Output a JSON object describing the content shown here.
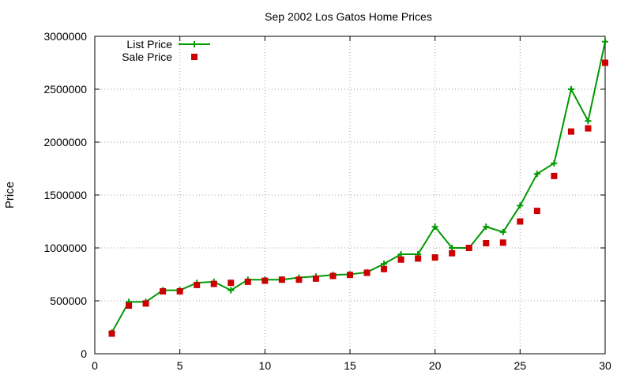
{
  "chart_data": {
    "type": "line",
    "title": "Sep 2002 Los Gatos Home Prices",
    "xlabel": "",
    "ylabel": "Price",
    "xlim": [
      0,
      30
    ],
    "ylim": [
      0,
      3000000
    ],
    "grid": true,
    "legend_position": "top-left",
    "xticks": [
      "0",
      "5",
      "10",
      "15",
      "20",
      "25",
      "30"
    ],
    "yticks": [
      "0",
      "500000",
      "1000000",
      "1500000",
      "2000000",
      "2500000",
      "3000000"
    ],
    "series": [
      {
        "name": "List Price",
        "style": "linespoints",
        "color": "#009900",
        "x": [
          1,
          2,
          3,
          4,
          5,
          6,
          7,
          8,
          9,
          10,
          11,
          12,
          13,
          14,
          15,
          16,
          17,
          18,
          19,
          20,
          21,
          22,
          23,
          24,
          25,
          26,
          27,
          28,
          29,
          30
        ],
        "values": [
          200000,
          490000,
          490000,
          600000,
          600000,
          670000,
          680000,
          600000,
          700000,
          700000,
          700000,
          720000,
          730000,
          745000,
          750000,
          770000,
          850000,
          940000,
          940000,
          1200000,
          1000000,
          1000000,
          1200000,
          1150000,
          1400000,
          1700000,
          1800000,
          2500000,
          2200000,
          2950000
        ]
      },
      {
        "name": "Sale Price",
        "style": "points",
        "color": "#cc0000",
        "x": [
          1,
          2,
          3,
          4,
          5,
          6,
          7,
          8,
          9,
          10,
          11,
          12,
          13,
          14,
          15,
          16,
          17,
          18,
          19,
          20,
          21,
          22,
          23,
          24,
          25,
          26,
          27,
          28,
          29,
          30
        ],
        "values": [
          190000,
          455000,
          475000,
          590000,
          590000,
          650000,
          660000,
          670000,
          680000,
          690000,
          700000,
          700000,
          710000,
          735000,
          745000,
          765000,
          800000,
          890000,
          900000,
          910000,
          950000,
          1000000,
          1045000,
          1050000,
          1250000,
          1350000,
          1680000,
          2100000,
          2130000,
          2750000
        ]
      }
    ]
  }
}
